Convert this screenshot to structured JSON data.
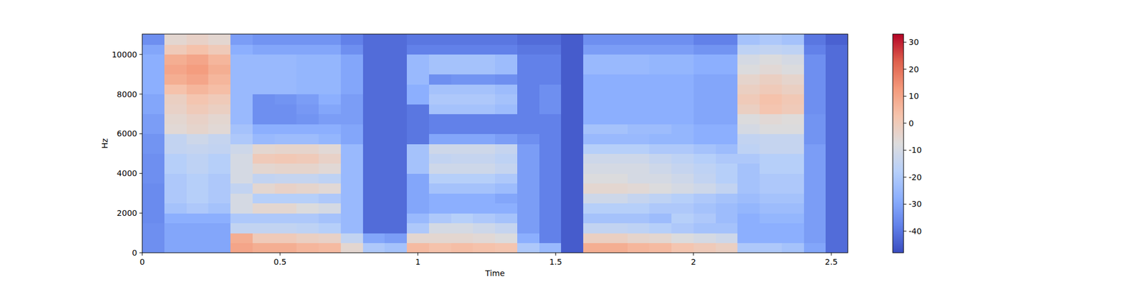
{
  "chart_data": {
    "type": "heatmap",
    "x_label": "Time",
    "y_label": "Hz",
    "color": "coolwarm",
    "xlim": [
      0,
      2.56
    ],
    "ylim": [
      0,
      11025
    ],
    "xticks": [
      0,
      0.5,
      1,
      1.5,
      2,
      2.5
    ],
    "yticks": [
      0,
      2000,
      4000,
      6000,
      8000,
      10000
    ],
    "time_bins": [
      0,
      0.08,
      0.16,
      0.24,
      0.32,
      0.4,
      0.48,
      0.56,
      0.64,
      0.72,
      0.8,
      0.88,
      0.96,
      1.04,
      1.12,
      1.2,
      1.28,
      1.36,
      1.44,
      1.52,
      1.6,
      1.68,
      1.76,
      1.84,
      1.92,
      2,
      2.08,
      2.16,
      2.24,
      2.32,
      2.4,
      2.48,
      2.56
    ],
    "freq_bins": [
      0,
      500,
      1000,
      1500,
      2000,
      2500,
      3000,
      3500,
      4000,
      4500,
      5000,
      5500,
      6000,
      6500,
      7000,
      7500,
      8000,
      8500,
      9000,
      9500,
      10000,
      10500,
      11025
    ],
    "cells": [
      [
        -35,
        -30,
        -30,
        -30,
        10,
        8,
        8,
        6,
        5,
        -5,
        -20,
        -22,
        5,
        3,
        4,
        3,
        2,
        -20,
        -25,
        -45,
        8,
        8,
        6,
        5,
        2,
        0,
        -2,
        -20,
        -20,
        -22,
        -30,
        -42
      ],
      [
        -35,
        -30,
        -30,
        -30,
        8,
        0,
        0,
        -2,
        -3,
        -15,
        -30,
        -32,
        -5,
        -5,
        -5,
        -6,
        -8,
        -28,
        -38,
        -45,
        -2,
        -2,
        -4,
        -5,
        -8,
        -10,
        -12,
        -28,
        -28,
        -28,
        -32,
        -42
      ],
      [
        -35,
        -30,
        -30,
        -30,
        -15,
        -15,
        -15,
        -16,
        -18,
        -25,
        -42,
        -42,
        -20,
        -10,
        -10,
        -12,
        -14,
        -32,
        -38,
        -45,
        -15,
        -15,
        -16,
        -18,
        -20,
        -22,
        -22,
        -28,
        -28,
        -28,
        -32,
        -42
      ],
      [
        -36,
        -28,
        -28,
        -28,
        -20,
        -20,
        -20,
        -20,
        -22,
        -25,
        -42,
        -42,
        -25,
        -20,
        -18,
        -20,
        -22,
        -32,
        -38,
        -45,
        -22,
        -22,
        -22,
        -24,
        -18,
        -20,
        -24,
        -28,
        -26,
        -26,
        -32,
        -42
      ],
      [
        -36,
        -22,
        -20,
        -22,
        -10,
        -5,
        -5,
        -8,
        -10,
        -25,
        -42,
        -42,
        -30,
        -28,
        -28,
        -28,
        -28,
        -32,
        -38,
        -45,
        -18,
        -18,
        -18,
        -20,
        -20,
        -22,
        -24,
        -26,
        -24,
        -24,
        -32,
        -42
      ],
      [
        -36,
        -20,
        -18,
        -20,
        -10,
        -18,
        -18,
        -18,
        -20,
        -25,
        -42,
        -42,
        -30,
        -28,
        -28,
        -28,
        -30,
        -32,
        -38,
        -45,
        -12,
        -12,
        -14,
        -16,
        -18,
        -20,
        -22,
        -24,
        -22,
        -22,
        -32,
        -42
      ],
      [
        -36,
        -20,
        -18,
        -20,
        -15,
        -5,
        -3,
        -4,
        -6,
        -25,
        -42,
        -42,
        -30,
        -22,
        -22,
        -22,
        -24,
        -32,
        -38,
        -45,
        -5,
        -5,
        -6,
        -8,
        -10,
        -12,
        -15,
        -22,
        -20,
        -20,
        -32,
        -42
      ],
      [
        -35,
        -20,
        -18,
        -20,
        -10,
        -15,
        -14,
        -14,
        -16,
        -25,
        -42,
        -42,
        -30,
        -18,
        -18,
        -18,
        -20,
        -32,
        -38,
        -45,
        -8,
        -8,
        -10,
        -10,
        -12,
        -15,
        -18,
        -22,
        -20,
        -20,
        -32,
        -42
      ],
      [
        -35,
        -18,
        -16,
        -18,
        -10,
        -5,
        -4,
        -4,
        -6,
        -25,
        -42,
        -42,
        -22,
        -12,
        -12,
        -12,
        -14,
        -32,
        -38,
        -45,
        -10,
        -10,
        -10,
        -12,
        -14,
        -16,
        -18,
        -22,
        -18,
        -18,
        -32,
        -42
      ],
      [
        -35,
        -18,
        -16,
        -18,
        -10,
        0,
        1,
        0,
        -3,
        -25,
        -42,
        -42,
        -22,
        -15,
        -14,
        -14,
        -16,
        -32,
        -38,
        -45,
        -12,
        -12,
        -12,
        -14,
        -16,
        -18,
        -20,
        -20,
        -18,
        -18,
        -32,
        -42
      ],
      [
        -34,
        -15,
        -14,
        -15,
        -12,
        -5,
        -4,
        -4,
        -6,
        -25,
        -42,
        -42,
        -22,
        -12,
        -12,
        -12,
        -14,
        -32,
        -38,
        -45,
        -18,
        -18,
        -18,
        -20,
        -20,
        -22,
        -24,
        -16,
        -14,
        -14,
        -32,
        -42
      ],
      [
        -34,
        -15,
        -12,
        -14,
        -20,
        -25,
        -24,
        -24,
        -26,
        -30,
        -42,
        -42,
        -40,
        -30,
        -30,
        -30,
        -32,
        -35,
        -38,
        -45,
        -25,
        -25,
        -25,
        -26,
        -26,
        -28,
        -28,
        -15,
        -14,
        -14,
        -34,
        -42
      ],
      [
        -32,
        -6,
        -4,
        -6,
        -22,
        -28,
        -28,
        -28,
        -28,
        -30,
        -42,
        -42,
        -40,
        -38,
        -38,
        -38,
        -38,
        -38,
        -38,
        -45,
        -22,
        -22,
        -24,
        -24,
        -26,
        -28,
        -28,
        -10,
        -8,
        -8,
        -34,
        -42
      ],
      [
        -32,
        -5,
        -3,
        -5,
        -25,
        -35,
        -35,
        -34,
        -32,
        -32,
        -42,
        -42,
        -40,
        -38,
        -38,
        -38,
        -38,
        -38,
        -38,
        -45,
        -28,
        -28,
        -28,
        -28,
        -28,
        -30,
        -30,
        -8,
        -6,
        -7,
        -34,
        -42
      ],
      [
        -30,
        -3,
        0,
        -2,
        -25,
        -35,
        -35,
        -33,
        -30,
        -32,
        -42,
        -42,
        -40,
        -22,
        -22,
        -22,
        -24,
        -38,
        -35,
        -45,
        -28,
        -28,
        -28,
        -28,
        -28,
        -30,
        -30,
        -2,
        2,
        0,
        -35,
        -42
      ],
      [
        -30,
        -2,
        2,
        0,
        -25,
        -35,
        -34,
        -32,
        -28,
        -32,
        -42,
        -42,
        -28,
        -20,
        -20,
        -20,
        -22,
        -38,
        -35,
        -45,
        -28,
        -28,
        -28,
        -28,
        -28,
        -30,
        -30,
        0,
        3,
        1,
        -35,
        -42
      ],
      [
        -28,
        3,
        6,
        4,
        -25,
        -25,
        -25,
        -26,
        -26,
        -30,
        -42,
        -42,
        -28,
        -22,
        -22,
        -22,
        -24,
        -38,
        -35,
        -45,
        -28,
        -28,
        -28,
        -28,
        -28,
        -30,
        -30,
        -2,
        0,
        -2,
        -35,
        -42
      ],
      [
        -28,
        8,
        10,
        6,
        -25,
        -25,
        -25,
        -26,
        -26,
        -30,
        -42,
        -42,
        -25,
        -35,
        -34,
        -34,
        -35,
        -38,
        -38,
        -45,
        -28,
        -28,
        -28,
        -28,
        -28,
        -30,
        -30,
        -4,
        -2,
        -4,
        -35,
        -42
      ],
      [
        -28,
        10,
        12,
        8,
        -25,
        -25,
        -25,
        -26,
        -26,
        -30,
        -42,
        -42,
        -25,
        -22,
        -22,
        -22,
        -24,
        -38,
        -38,
        -45,
        -25,
        -25,
        -25,
        -26,
        -26,
        -28,
        -28,
        -8,
        -6,
        -8,
        -35,
        -42
      ],
      [
        -28,
        8,
        10,
        6,
        -25,
        -25,
        -25,
        -26,
        -26,
        -30,
        -42,
        -42,
        -25,
        -22,
        -22,
        -22,
        -24,
        -38,
        -38,
        -45,
        -25,
        -25,
        -25,
        -26,
        -26,
        -28,
        -28,
        -10,
        -8,
        -10,
        -35,
        -42
      ],
      [
        -30,
        0,
        3,
        0,
        -28,
        -30,
        -30,
        -30,
        -30,
        -35,
        -42,
        -42,
        -38,
        -38,
        -38,
        -38,
        -38,
        -40,
        -40,
        -45,
        -32,
        -32,
        -32,
        -32,
        -32,
        -34,
        -34,
        -16,
        -15,
        -16,
        -38,
        -42
      ],
      [
        -35,
        -5,
        -3,
        -5,
        -32,
        -34,
        -34,
        -34,
        -34,
        -38,
        -42,
        -42,
        -40,
        -40,
        -40,
        -40,
        -40,
        -42,
        -42,
        -45,
        -35,
        -35,
        -35,
        -35,
        -35,
        -38,
        -38,
        -22,
        -20,
        -22,
        -40,
        -44
      ]
    ],
    "colorbar": {
      "range": [
        -48,
        33
      ],
      "ticks": [
        -40,
        -30,
        -20,
        -10,
        0,
        10,
        20,
        30
      ]
    }
  }
}
